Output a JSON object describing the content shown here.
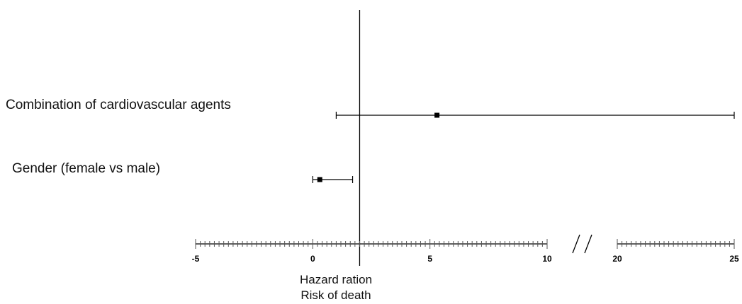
{
  "chart_data": {
    "type": "forest",
    "rows": [
      {
        "label": "Combination of cardiovascular agents",
        "estimate": 5.3,
        "ci_low": 1.0,
        "ci_high": 25.0
      },
      {
        "label": "Gender (female vs male)",
        "estimate": 0.3,
        "ci_low": 0.0,
        "ci_high": 1.7
      }
    ],
    "reference_line_x": 2.0,
    "x_axis": {
      "segments": [
        {
          "range": [
            -5,
            10
          ],
          "tick_labels": [
            "-5",
            "0",
            "5",
            "10"
          ],
          "ticks_at": [
            -5,
            0,
            5,
            10
          ]
        },
        {
          "range": [
            20,
            25
          ],
          "tick_labels": [
            "20",
            "25"
          ],
          "ticks_at": [
            20,
            25
          ]
        }
      ],
      "break_marker": "/ /",
      "title_lines": [
        "Hazard ration",
        "Risk of death"
      ]
    },
    "colors": {
      "ink": "#000000"
    }
  }
}
